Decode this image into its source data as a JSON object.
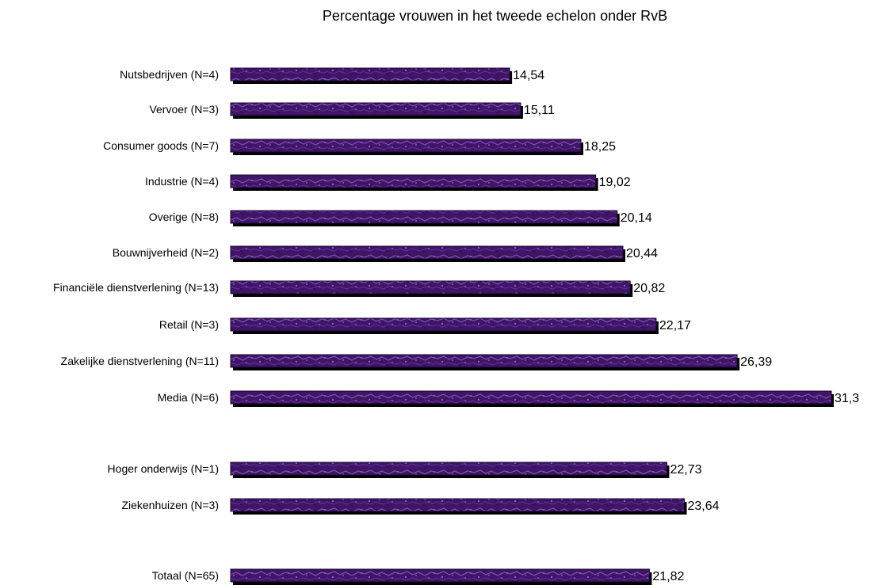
{
  "chart_data": {
    "type": "bar",
    "orientation": "horizontal",
    "title": "Percentage vrouwen in het tweede echelon onder RvB",
    "xlabel": "",
    "ylabel": "",
    "xlim": [
      0,
      31.3
    ],
    "grid": false,
    "bar_color": "#4b1a7a",
    "categories": [
      "Nutsbedrijven (N=4)",
      "Vervoer (N=3)",
      "Consumer goods (N=7)",
      "Industrie (N=4)",
      "Overige (N=8)",
      "Bouwnijverheid (N=2)",
      "Financiële dienstverlening (N=13)",
      "Retail (N=3)",
      "Zakelijke dienstverlening (N=11)",
      "Media (N=6)",
      "Hoger onderwijs (N=1)",
      "Ziekenhuizen (N=3)",
      "Totaal (N=65)"
    ],
    "values": [
      14.54,
      15.11,
      18.25,
      19.02,
      20.14,
      20.44,
      20.82,
      22.17,
      26.39,
      31.3,
      22.73,
      23.64,
      21.82
    ],
    "data_labels": [
      "14,54",
      "15,11",
      "18,25",
      "19,02",
      "20,14",
      "20,44",
      "20,82",
      "22,17",
      "26,39",
      "31,3",
      "22,73",
      "23,64",
      "21,82"
    ]
  }
}
